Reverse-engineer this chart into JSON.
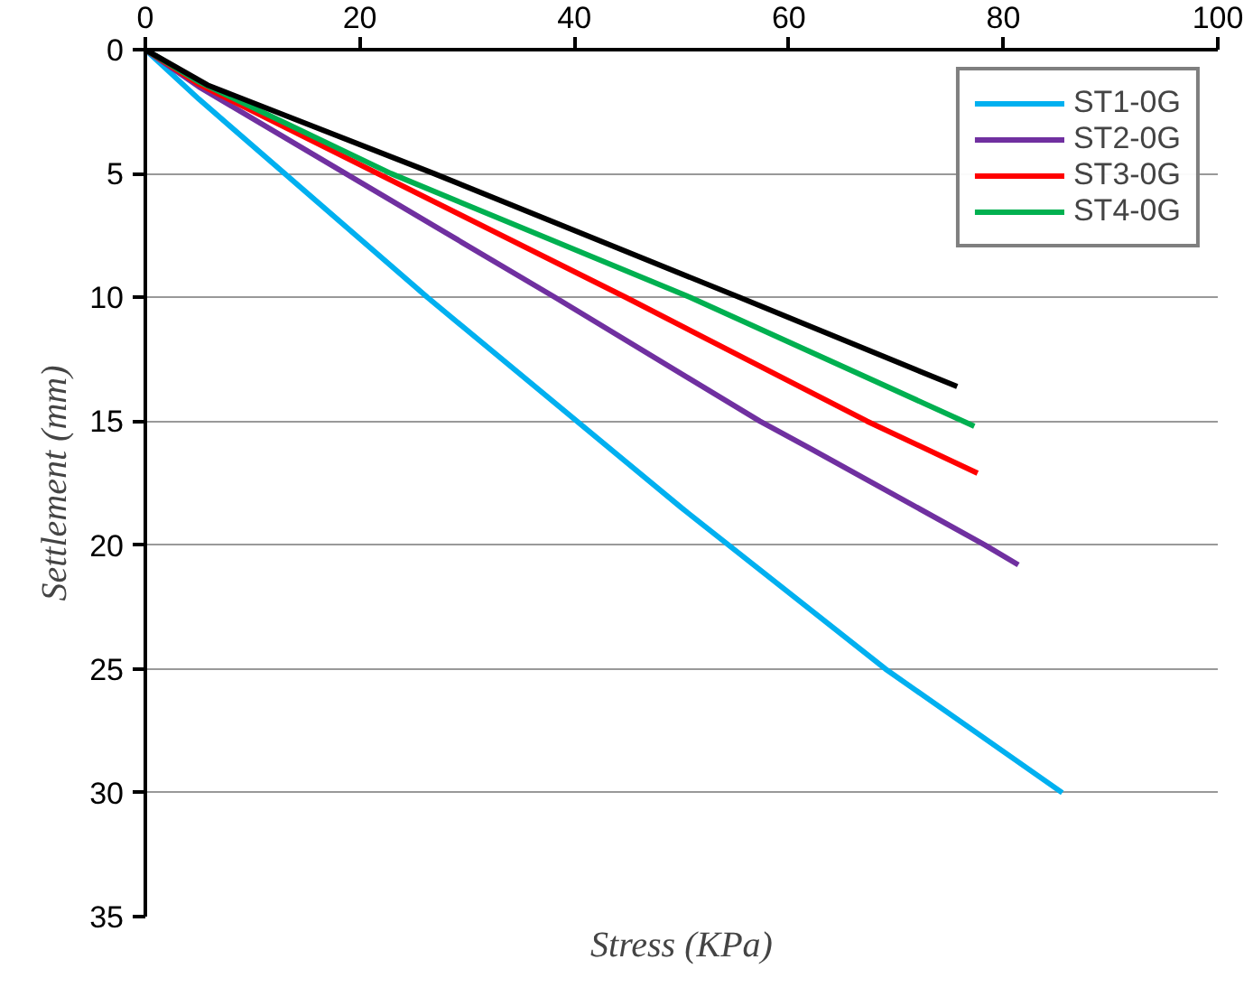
{
  "chart_data": {
    "type": "line",
    "xlabel": "Stress (KPa)",
    "ylabel": "Settlement (mm)",
    "xlim": [
      0,
      100
    ],
    "xticks": [
      0,
      20,
      40,
      60,
      80,
      100
    ],
    "ylim": [
      35,
      0
    ],
    "yticks": [
      0,
      5,
      10,
      15,
      20,
      25,
      30,
      35
    ],
    "grid": "y",
    "legend": "top right",
    "marker": "none",
    "line_style": "solid",
    "series": [
      {
        "name": "ST1-0G",
        "color": "#00b0f0",
        "x": [
          0,
          5,
          26.3,
          50,
          69,
          85.5
        ],
        "values": [
          0,
          2.0,
          10,
          18.5,
          25,
          30
        ]
      },
      {
        "name": "ST2-0G",
        "color": "#7030a0",
        "x": [
          0,
          5,
          38.2,
          57.3,
          62,
          78.3,
          81.4
        ],
        "values": [
          0,
          1.5,
          10,
          15,
          16.1,
          20,
          20.8
        ]
      },
      {
        "name": "ST3-0G",
        "color": "#ff0000",
        "x": [
          0,
          5,
          44.8,
          67.3,
          77.6
        ],
        "values": [
          0,
          1.4,
          10,
          15,
          17.1
        ]
      },
      {
        "name": "ST4-0G",
        "color": "#00b050",
        "x": [
          0,
          5,
          22.9,
          50.8,
          77.3
        ],
        "values": [
          0,
          1.3,
          5,
          10,
          15.2
        ]
      },
      {
        "color": "#000000",
        "x": [
          0,
          5.8,
          26.9,
          55.4,
          75.7
        ],
        "values": [
          0,
          1.43,
          5,
          10,
          13.6
        ]
      }
    ]
  }
}
